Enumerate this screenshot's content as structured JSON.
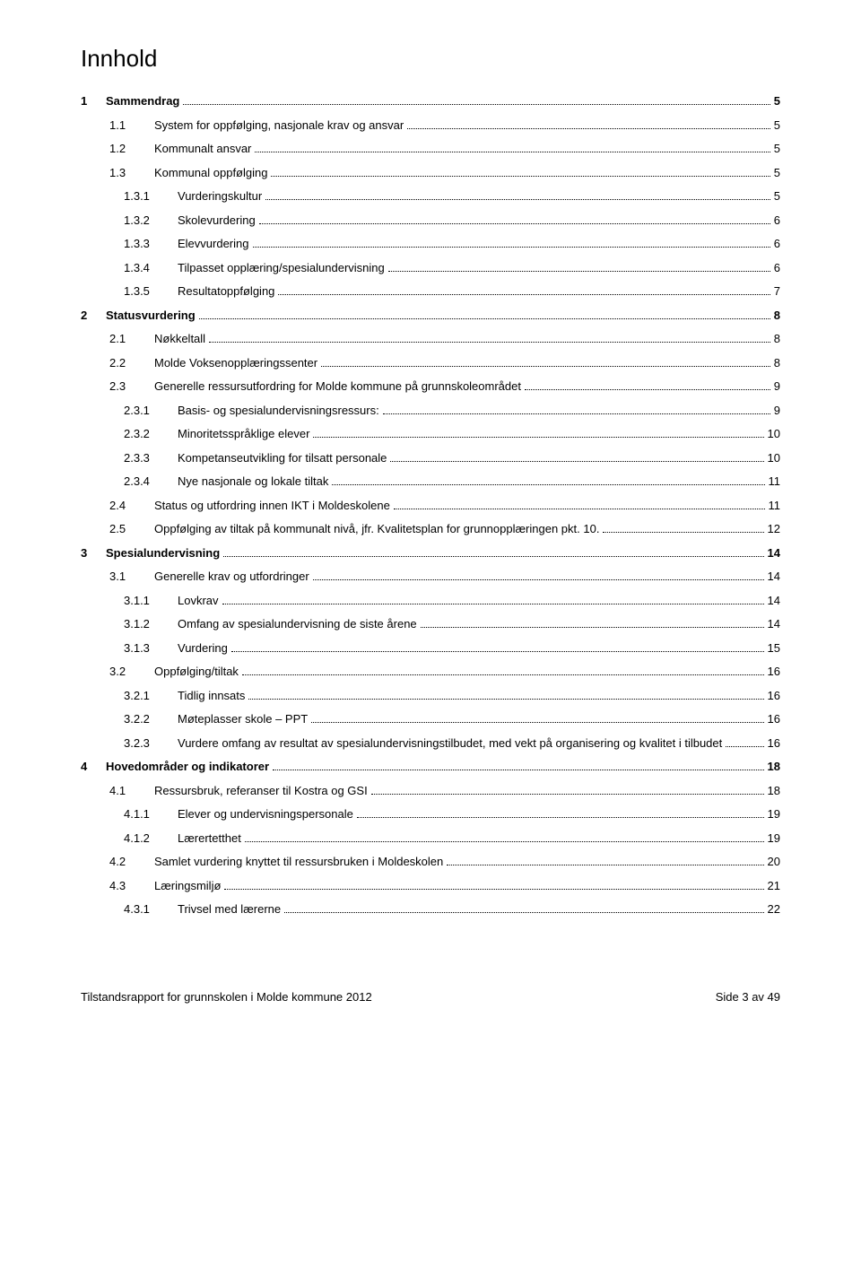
{
  "title": "Innhold",
  "entries": [
    {
      "level": 1,
      "num": "1",
      "label": "Sammendrag",
      "page": "5"
    },
    {
      "level": 2,
      "num": "1.1",
      "label": "System for oppfølging, nasjonale krav og ansvar",
      "page": "5"
    },
    {
      "level": 2,
      "num": "1.2",
      "label": "Kommunalt ansvar",
      "page": "5"
    },
    {
      "level": 2,
      "num": "1.3",
      "label": "Kommunal oppfølging",
      "page": "5"
    },
    {
      "level": 3,
      "num": "1.3.1",
      "label": "Vurderingskultur",
      "page": "5"
    },
    {
      "level": 3,
      "num": "1.3.2",
      "label": "Skolevurdering",
      "page": "6"
    },
    {
      "level": 3,
      "num": "1.3.3",
      "label": "Elevvurdering",
      "page": "6"
    },
    {
      "level": 3,
      "num": "1.3.4",
      "label": "Tilpasset opplæring/spesialundervisning",
      "page": "6"
    },
    {
      "level": 3,
      "num": "1.3.5",
      "label": "Resultatoppfølging",
      "page": "7"
    },
    {
      "level": 1,
      "num": "2",
      "label": "Statusvurdering",
      "page": "8"
    },
    {
      "level": 2,
      "num": "2.1",
      "label": "Nøkkeltall",
      "page": "8"
    },
    {
      "level": 2,
      "num": "2.2",
      "label": "Molde Voksenopplæringssenter",
      "page": "8"
    },
    {
      "level": 2,
      "num": "2.3",
      "label": "Generelle ressursutfordring for Molde kommune på grunnskoleområdet",
      "page": "9"
    },
    {
      "level": 3,
      "num": "2.3.1",
      "label": "Basis- og spesialundervisningsressurs:",
      "page": "9"
    },
    {
      "level": 3,
      "num": "2.3.2",
      "label": "Minoritetsspråklige elever",
      "page": "10"
    },
    {
      "level": 3,
      "num": "2.3.3",
      "label": "Kompetanseutvikling for tilsatt personale",
      "page": "10"
    },
    {
      "level": 3,
      "num": "2.3.4",
      "label": "Nye nasjonale og lokale tiltak",
      "page": "11"
    },
    {
      "level": 2,
      "num": "2.4",
      "label": "Status og utfordring innen IKT i Moldeskolene",
      "page": "11"
    },
    {
      "level": 2,
      "num": "2.5",
      "label": "Oppfølging av tiltak på kommunalt nivå, jfr. Kvalitetsplan for grunnopplæringen pkt. 10.",
      "page": "12"
    },
    {
      "level": 1,
      "num": "3",
      "label": "Spesialundervisning",
      "page": "14"
    },
    {
      "level": 2,
      "num": "3.1",
      "label": "Generelle krav og utfordringer",
      "page": "14"
    },
    {
      "level": 3,
      "num": "3.1.1",
      "label": "Lovkrav",
      "page": "14"
    },
    {
      "level": 3,
      "num": "3.1.2",
      "label": "Omfang av spesialundervisning de siste årene",
      "page": "14"
    },
    {
      "level": 3,
      "num": "3.1.3",
      "label": "Vurdering",
      "page": "15"
    },
    {
      "level": 2,
      "num": "3.2",
      "label": "Oppfølging/tiltak",
      "page": "16"
    },
    {
      "level": 3,
      "num": "3.2.1",
      "label": "Tidlig innsats",
      "page": "16"
    },
    {
      "level": 3,
      "num": "3.2.2",
      "label": "Møteplasser skole – PPT",
      "page": "16"
    },
    {
      "level": 3,
      "num": "3.2.3",
      "label": "Vurdere omfang av resultat av spesialundervisningstilbudet, med vekt på organisering og kvalitet i tilbudet",
      "page": "16"
    },
    {
      "level": 1,
      "num": "4",
      "label": "Hovedområder og indikatorer",
      "page": "18"
    },
    {
      "level": 2,
      "num": "4.1",
      "label": "Ressursbruk, referanser til Kostra og GSI",
      "page": "18"
    },
    {
      "level": 3,
      "num": "4.1.1",
      "label": "Elever og undervisningspersonale",
      "page": "19"
    },
    {
      "level": 3,
      "num": "4.1.2",
      "label": "Lærertetthet",
      "page": "19"
    },
    {
      "level": 2,
      "num": "4.2",
      "label": "Samlet vurdering knyttet til ressursbruken i Moldeskolen",
      "page": "20"
    },
    {
      "level": 2,
      "num": "4.3",
      "label": "Læringsmiljø",
      "page": "21"
    },
    {
      "level": 3,
      "num": "4.3.1",
      "label": "Trivsel med lærerne",
      "page": "22"
    }
  ],
  "footer_left": "Tilstandsrapport for grunnskolen i Molde kommune 2012",
  "footer_right": "Side 3 av 49"
}
